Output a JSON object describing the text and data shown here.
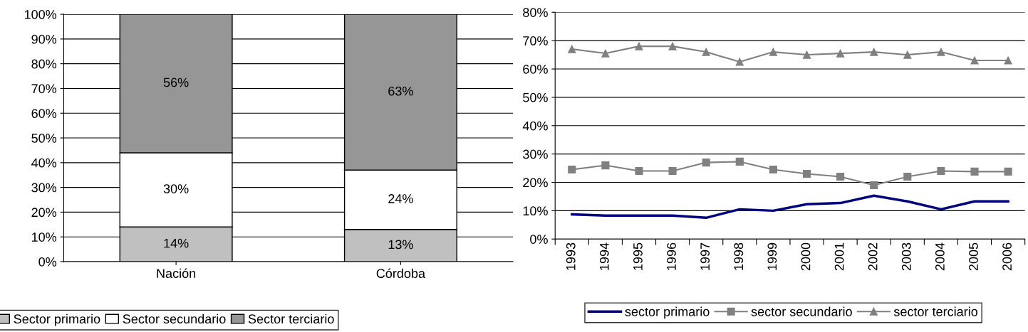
{
  "chart_data": [
    {
      "type": "bar",
      "stacked": true,
      "categories": [
        "Nación",
        "Córdoba"
      ],
      "grid": "y",
      "legend": "bottom",
      "ylim": [
        0,
        100
      ],
      "yticks": [
        {
          "value": 0,
          "label": "0%"
        },
        {
          "value": 10,
          "label": "10%"
        },
        {
          "value": 20,
          "label": "20%"
        },
        {
          "value": 30,
          "label": "30%"
        },
        {
          "value": 40,
          "label": "40%"
        },
        {
          "value": 50,
          "label": "50%"
        },
        {
          "value": 60,
          "label": "60%"
        },
        {
          "value": 70,
          "label": "70%"
        },
        {
          "value": 80,
          "label": "80%"
        },
        {
          "value": 90,
          "label": "90%"
        },
        {
          "value": 100,
          "label": "100%"
        }
      ],
      "series": [
        {
          "name": "Sector primario",
          "color": "#c0c0c0",
          "values": [
            14,
            13
          ],
          "value_labels": [
            "14%",
            "13%"
          ]
        },
        {
          "name": "Sector secundario",
          "color": "#ffffff",
          "values": [
            30,
            24
          ],
          "value_labels": [
            "30%",
            "24%"
          ]
        },
        {
          "name": "Sector terciario",
          "color": "#969696",
          "values": [
            56,
            63
          ],
          "value_labels": [
            "56%",
            "63%"
          ]
        }
      ]
    },
    {
      "type": "line",
      "categories": [
        "1993",
        "1994",
        "1995",
        "1996",
        "1997",
        "1998",
        "1999",
        "2000",
        "2001",
        "2002",
        "2003",
        "2004",
        "2005",
        "2006"
      ],
      "grid": "y",
      "legend": "bottom",
      "ylim": [
        0,
        80
      ],
      "yticks": [
        {
          "value": 0,
          "label": "0%"
        },
        {
          "value": 10,
          "label": "10%"
        },
        {
          "value": 20,
          "label": "20%"
        },
        {
          "value": 30,
          "label": "30%"
        },
        {
          "value": 40,
          "label": "40%"
        },
        {
          "value": 50,
          "label": "50%"
        },
        {
          "value": 60,
          "label": "60%"
        },
        {
          "value": 70,
          "label": "70%"
        },
        {
          "value": 80,
          "label": "80%"
        }
      ],
      "series": [
        {
          "name": "sector primario",
          "color": "#000080",
          "marker": "none",
          "values": [
            8.7,
            8.3,
            8.3,
            8.3,
            7.5,
            10.5,
            10,
            12.3,
            12.7,
            15.3,
            13.3,
            10.5,
            13.3,
            13.3
          ]
        },
        {
          "name": "sector secundario",
          "color": "#808080",
          "marker": "square",
          "values": [
            24.5,
            26,
            24,
            24,
            27,
            27.3,
            24.5,
            23,
            22,
            19,
            22,
            24,
            23.8,
            23.8
          ]
        },
        {
          "name": "sector terciario",
          "color": "#808080",
          "marker": "triangle",
          "values": [
            67,
            65.5,
            68,
            68,
            66,
            62.5,
            66,
            65,
            65.5,
            66,
            65,
            66,
            63,
            63
          ]
        }
      ]
    }
  ]
}
